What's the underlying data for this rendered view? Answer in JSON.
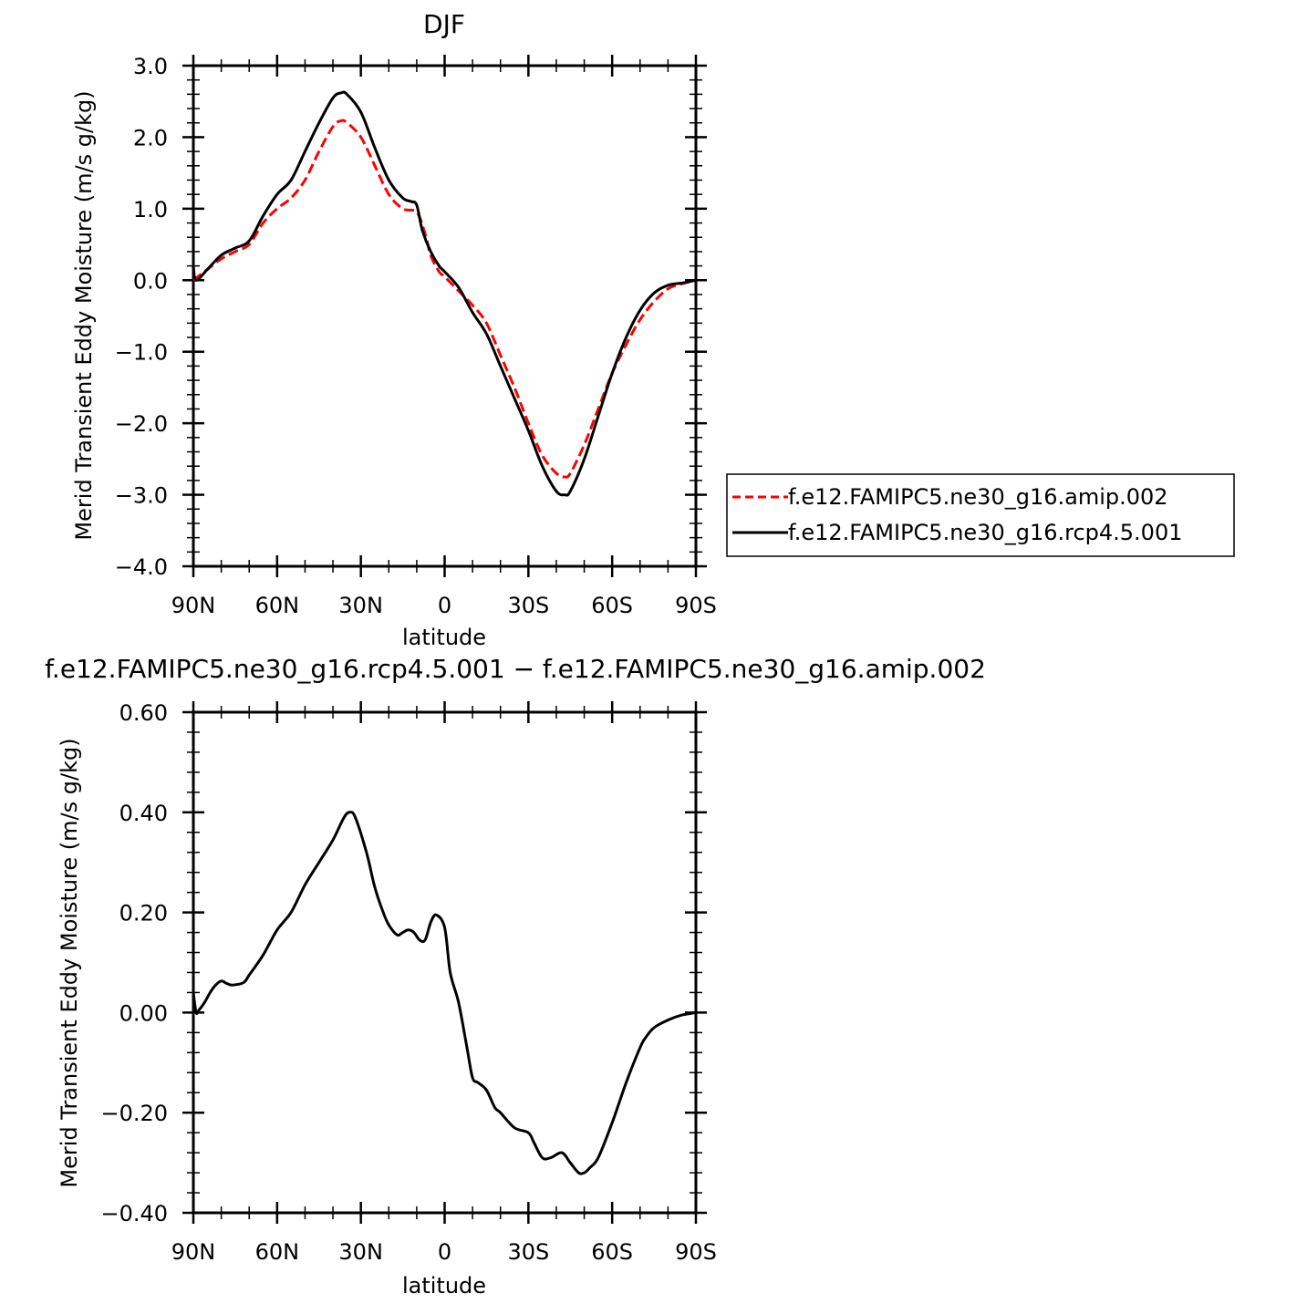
{
  "chart_data": [
    {
      "type": "line",
      "title": "DJF",
      "xlabel": "latitude",
      "ylabel": "Merid Transient Eddy Moisture (m/s g/kg)",
      "xlim": [
        90,
        -90
      ],
      "ylim": [
        -4.0,
        3.0
      ],
      "x_ticks": [
        90,
        60,
        30,
        0,
        -30,
        -60,
        -90
      ],
      "x_tick_labels": [
        "90N",
        "60N",
        "30N",
        "0",
        "30S",
        "60S",
        "90S"
      ],
      "y_ticks": [
        -4.0,
        -3.0,
        -2.0,
        -1.0,
        0.0,
        1.0,
        2.0,
        3.0
      ],
      "y_tick_labels": [
        "−4.0",
        "−3.0",
        "−2.0",
        "−1.0",
        "0.0",
        "1.0",
        "2.0",
        "3.0"
      ],
      "grid": false,
      "legend_position": "right",
      "series": [
        {
          "name": "f.e12.FAMIPC5.ne30_g16.amip.002",
          "color": "#ff0000",
          "dash": "dashed",
          "x": [
            90,
            85,
            80,
            75,
            70,
            65,
            60,
            55,
            50,
            45,
            40,
            37,
            35,
            30,
            25,
            20,
            15,
            10,
            7,
            5,
            2,
            0,
            -5,
            -10,
            -15,
            -20,
            -25,
            -30,
            -35,
            -40,
            -43,
            -45,
            -50,
            -55,
            -60,
            -65,
            -70,
            -75,
            -80,
            -85,
            -90
          ],
          "y": [
            0.0,
            0.15,
            0.3,
            0.4,
            0.5,
            0.8,
            1.0,
            1.15,
            1.4,
            1.8,
            2.15,
            2.23,
            2.2,
            2.0,
            1.6,
            1.2,
            1.0,
            0.95,
            0.65,
            0.35,
            0.12,
            0.05,
            -0.15,
            -0.35,
            -0.6,
            -1.05,
            -1.5,
            -2.0,
            -2.45,
            -2.7,
            -2.75,
            -2.7,
            -2.3,
            -1.8,
            -1.3,
            -0.9,
            -0.55,
            -0.3,
            -0.12,
            -0.05,
            0.0
          ]
        },
        {
          "name": "f.e12.FAMIPC5.ne30_g16.rcp4.5.001",
          "color": "#000000",
          "dash": "solid",
          "x": [
            90,
            89,
            85,
            80,
            75,
            70,
            65,
            60,
            55,
            50,
            45,
            40,
            37,
            35,
            30,
            25,
            20,
            15,
            12,
            10,
            8,
            5,
            2,
            0,
            -5,
            -10,
            -15,
            -20,
            -25,
            -30,
            -35,
            -40,
            -43,
            -45,
            -50,
            -55,
            -60,
            -65,
            -70,
            -75,
            -80,
            -85,
            -90
          ],
          "y": [
            0.2,
            0.0,
            0.15,
            0.35,
            0.45,
            0.55,
            0.9,
            1.2,
            1.4,
            1.8,
            2.2,
            2.55,
            2.62,
            2.6,
            2.35,
            1.85,
            1.4,
            1.15,
            1.1,
            1.05,
            0.7,
            0.4,
            0.2,
            0.12,
            -0.1,
            -0.45,
            -0.75,
            -1.2,
            -1.65,
            -2.1,
            -2.6,
            -2.95,
            -3.0,
            -2.95,
            -2.5,
            -1.9,
            -1.3,
            -0.8,
            -0.42,
            -0.18,
            -0.07,
            -0.04,
            0.0
          ]
        }
      ]
    },
    {
      "type": "line",
      "title": "f.e12.FAMIPC5.ne30_g16.rcp4.5.001 − f.e12.FAMIPC5.ne30_g16.amip.002",
      "xlabel": "latitude",
      "ylabel": "Merid Transient Eddy Moisture (m/s g/kg)",
      "xlim": [
        90,
        -90
      ],
      "ylim": [
        -0.4,
        0.6
      ],
      "x_ticks": [
        90,
        60,
        30,
        0,
        -30,
        -60,
        -90
      ],
      "x_tick_labels": [
        "90N",
        "60N",
        "30N",
        "0",
        "30S",
        "60S",
        "90S"
      ],
      "y_ticks": [
        -0.4,
        -0.2,
        0.0,
        0.2,
        0.4,
        0.6
      ],
      "y_tick_labels": [
        "−0.40",
        "−0.20",
        "0.00",
        "0.20",
        "0.40",
        "0.60"
      ],
      "grid": false,
      "series": [
        {
          "color": "#000000",
          "dash": "solid",
          "x": [
            90,
            89,
            88,
            86,
            84,
            82,
            80,
            78,
            76,
            72,
            70,
            65,
            60,
            55,
            50,
            45,
            40,
            36,
            34,
            32,
            28,
            25,
            22,
            20,
            17,
            15,
            13,
            11,
            9,
            7,
            5,
            3,
            0,
            -2,
            -5,
            -8,
            -10,
            -12,
            -15,
            -18,
            -20,
            -25,
            -30,
            -32,
            -35,
            -38,
            -42,
            -45,
            -48,
            -50,
            -52,
            -55,
            -60,
            -65,
            -70,
            -72,
            -75,
            -80,
            -85,
            -90
          ],
          "y": [
            0.04,
            0.0,
            0.005,
            0.02,
            0.04,
            0.055,
            0.063,
            0.058,
            0.055,
            0.06,
            0.075,
            0.115,
            0.165,
            0.2,
            0.255,
            0.3,
            0.345,
            0.39,
            0.4,
            0.39,
            0.32,
            0.25,
            0.2,
            0.175,
            0.155,
            0.16,
            0.165,
            0.16,
            0.145,
            0.145,
            0.18,
            0.195,
            0.17,
            0.08,
            0.02,
            -0.07,
            -0.13,
            -0.14,
            -0.155,
            -0.19,
            -0.2,
            -0.23,
            -0.24,
            -0.26,
            -0.29,
            -0.29,
            -0.28,
            -0.3,
            -0.32,
            -0.32,
            -0.31,
            -0.29,
            -0.22,
            -0.14,
            -0.07,
            -0.05,
            -0.03,
            -0.015,
            -0.005,
            0.0
          ]
        }
      ]
    }
  ]
}
